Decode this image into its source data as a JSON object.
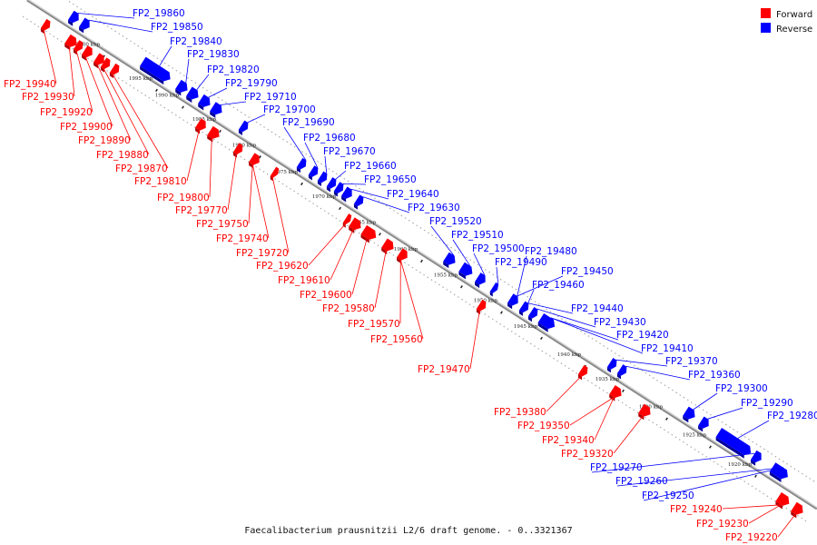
{
  "caption": "Faecalibacterium prausnitzii L2/6 draft genome. - 0..3321367",
  "legend": [
    {
      "label": "Forward",
      "color": "#ff0000"
    },
    {
      "label": "Reverse",
      "color": "#0000ff"
    }
  ],
  "colors": {
    "forward": "#ff0000",
    "reverse": "#0000ff",
    "axis": "#888888"
  },
  "ticks": [
    "2000 kbp",
    "1995 kbp",
    "1990 kbp",
    "1985 kbp",
    "1980 kbp",
    "1975 kbp",
    "1970 kbp",
    "1965 kbp",
    "1960 kbp",
    "1955 kbp",
    "1950 kbp",
    "1945 kbp",
    "1940 kbp",
    "1935 kbp",
    "1930 kbp",
    "1925 kbp",
    "1920 kbp"
  ],
  "forward_labels": [
    "FP2_19940",
    "FP2_19930",
    "FP2_19920",
    "FP2_19900",
    "FP2_19890",
    "FP2_19880",
    "FP2_19870",
    "FP2_19810",
    "FP2_19800",
    "FP2_19770",
    "FP2_19750",
    "FP2_19740",
    "FP2_19720",
    "FP2_19620",
    "FP2_19610",
    "FP2_19600",
    "FP2_19580",
    "FP2_19570",
    "FP2_19560",
    "FP2_19470",
    "FP2_19380",
    "FP2_19350",
    "FP2_19340",
    "FP2_19320",
    "FP2_19240",
    "FP2_19230",
    "FP2_19220"
  ],
  "reverse_labels": [
    "FP2_19860",
    "FP2_19850",
    "FP2_19840",
    "FP2_19830",
    "FP2_19820",
    "FP2_19790",
    "FP2_19710",
    "FP2_19700",
    "FP2_19690",
    "FP2_19680",
    "FP2_19670",
    "FP2_19660",
    "FP2_19650",
    "FP2_19640",
    "FP2_19630",
    "FP2_19520",
    "FP2_19510",
    "FP2_19500",
    "FP2_19490",
    "FP2_19480",
    "FP2_19450",
    "FP2_19460",
    "FP2_19440",
    "FP2_19430",
    "FP2_19420",
    "FP2_19410",
    "FP2_19370",
    "FP2_19360",
    "FP2_19300",
    "FP2_19290",
    "FP2_19280",
    "FP2_19270",
    "FP2_19260",
    "FP2_19250"
  ]
}
